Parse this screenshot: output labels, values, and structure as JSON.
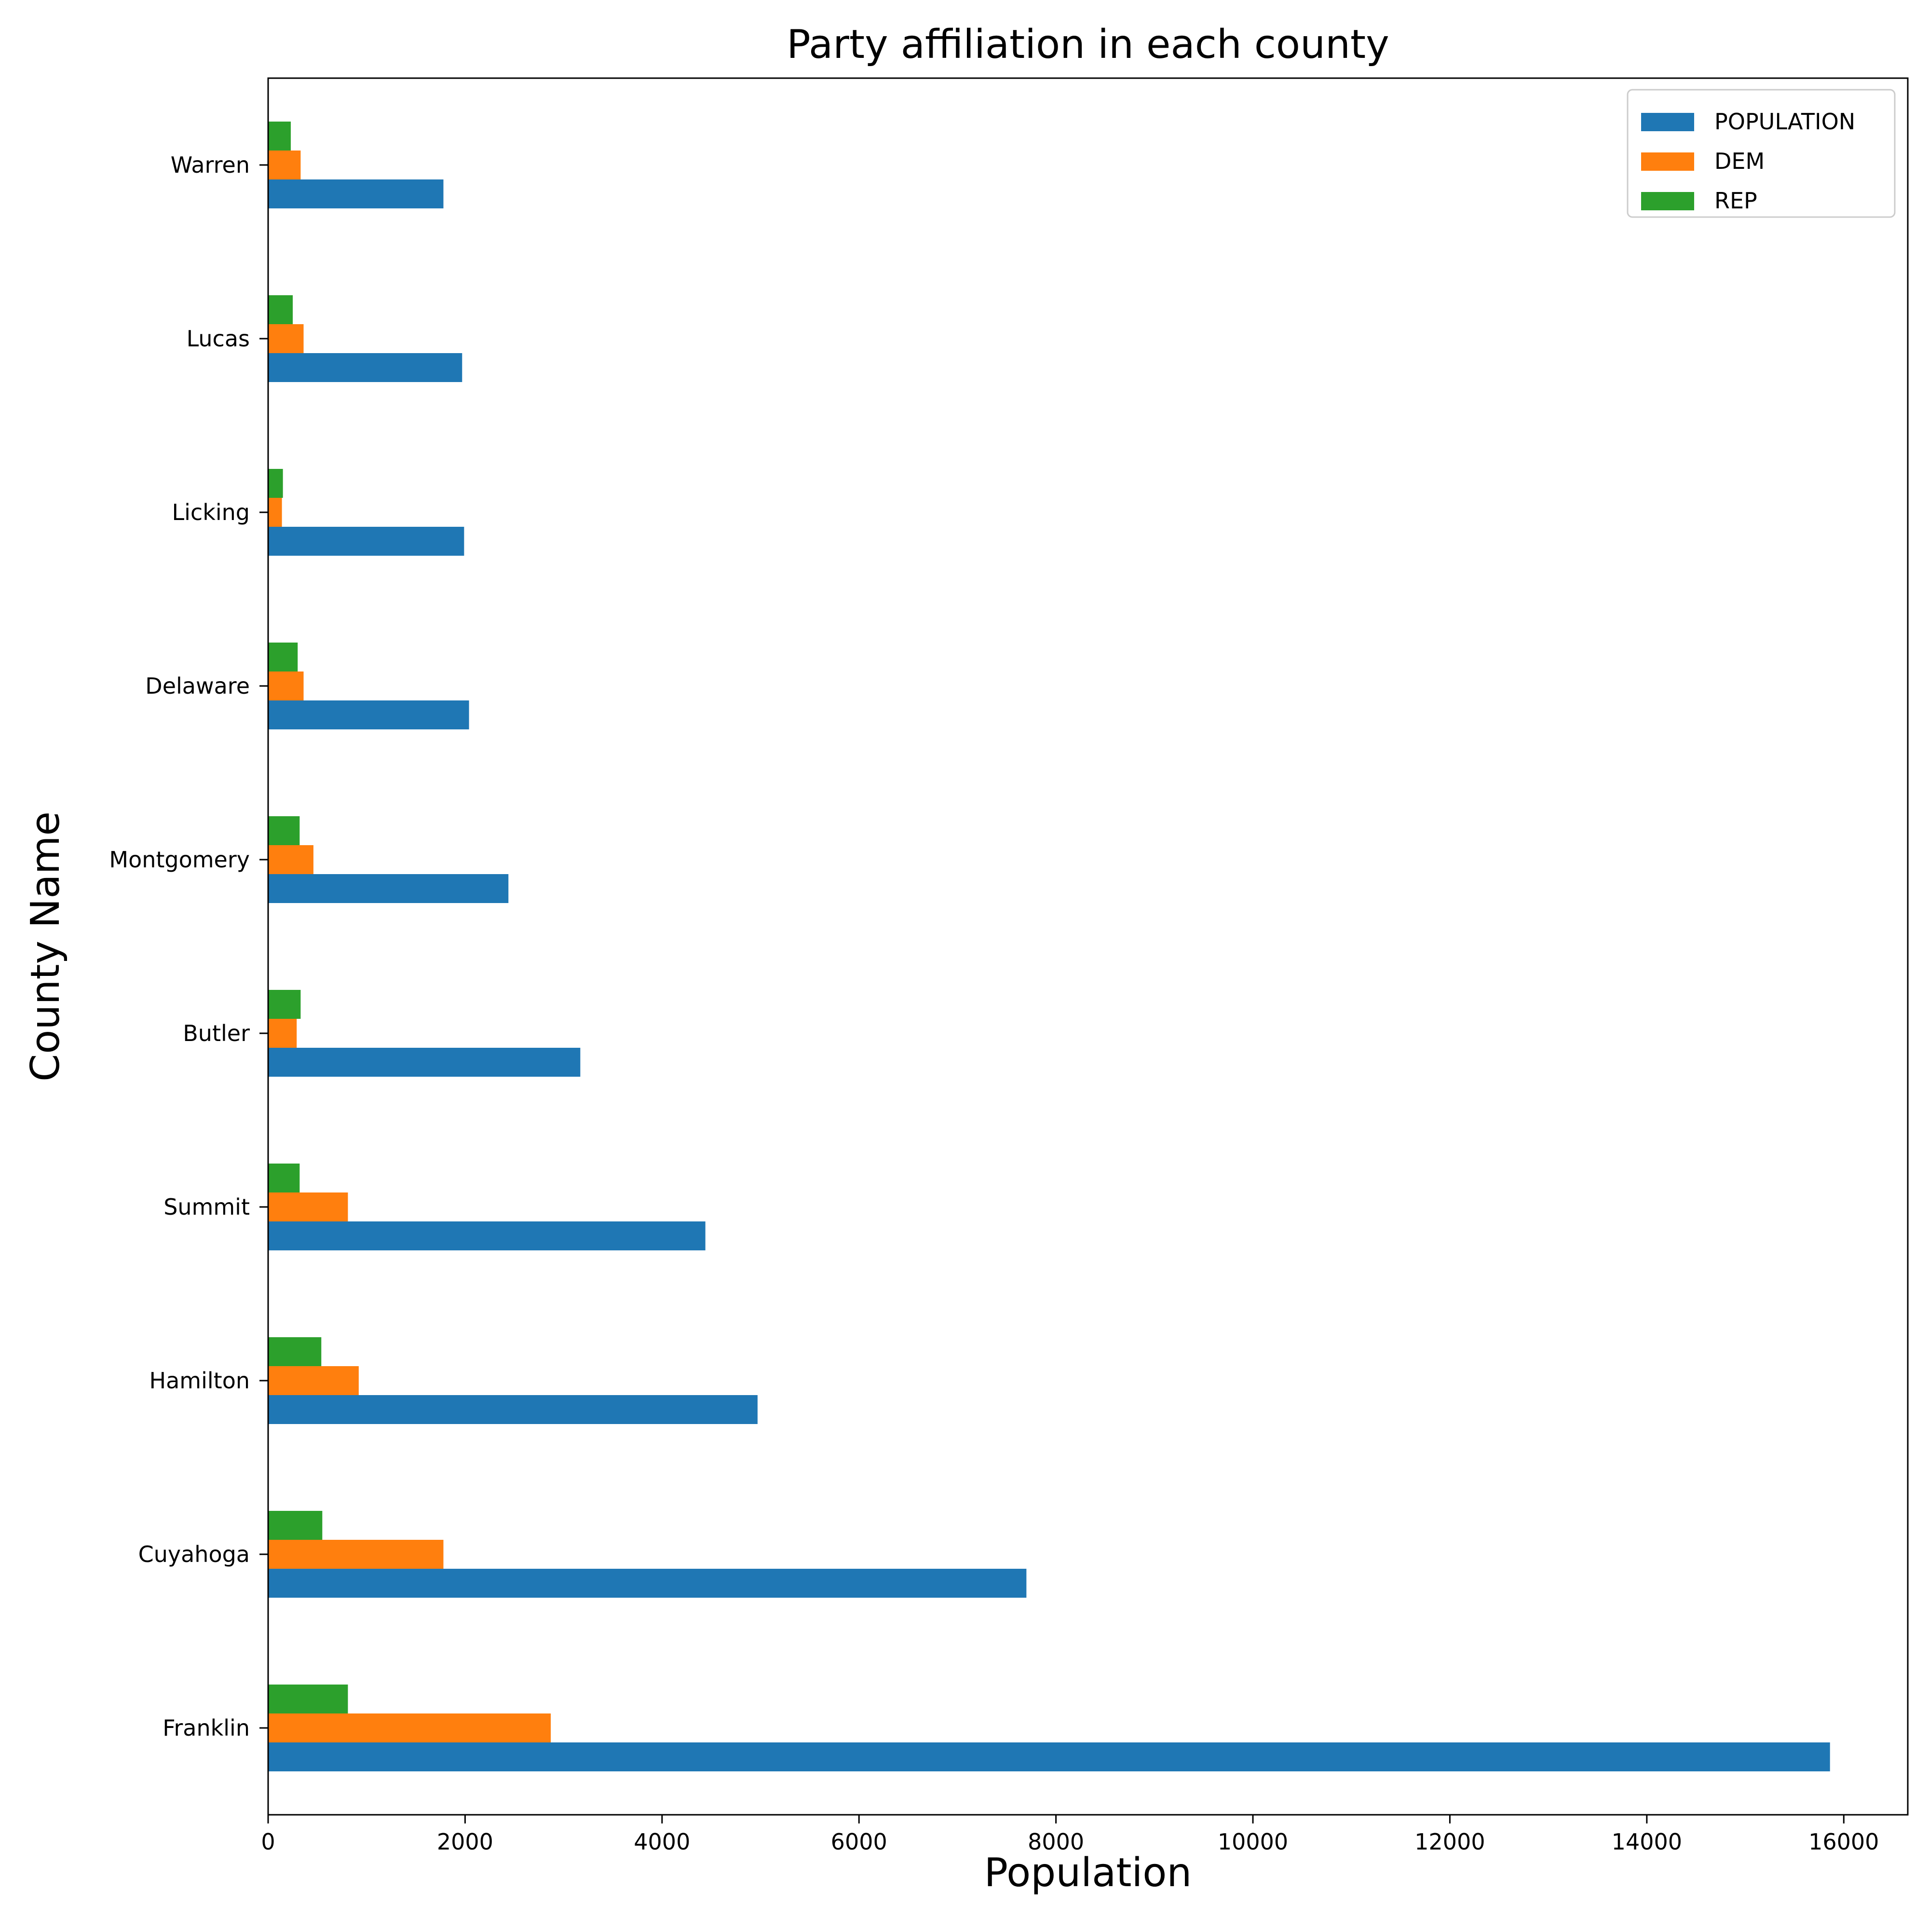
{
  "chart_data": {
    "type": "bar",
    "orientation": "horizontal",
    "title": "Party affiliation in each county",
    "xlabel": "Population",
    "ylabel": "County Name",
    "xlim": [
      0,
      16650
    ],
    "xticks": [
      0,
      2000,
      4000,
      6000,
      8000,
      10000,
      12000,
      14000,
      16000
    ],
    "categories": [
      "Franklin",
      "Cuyahoga",
      "Hamilton",
      "Summit",
      "Butler",
      "Montgomery",
      "Delaware",
      "Licking",
      "Lucas",
      "Warren"
    ],
    "series": [
      {
        "name": "POPULATION",
        "color": "#1f77b4",
        "values": [
          15860,
          7700,
          4970,
          4440,
          3170,
          2440,
          2040,
          1990,
          1970,
          1780
        ]
      },
      {
        "name": "DEM",
        "color": "#ff7f0e",
        "values": [
          2870,
          1780,
          920,
          810,
          290,
          460,
          360,
          140,
          360,
          330
        ]
      },
      {
        "name": "REP",
        "color": "#2ca02c",
        "values": [
          810,
          550,
          540,
          320,
          330,
          320,
          300,
          150,
          250,
          230
        ]
      }
    ],
    "grid": false,
    "legend_position": "top-right"
  }
}
